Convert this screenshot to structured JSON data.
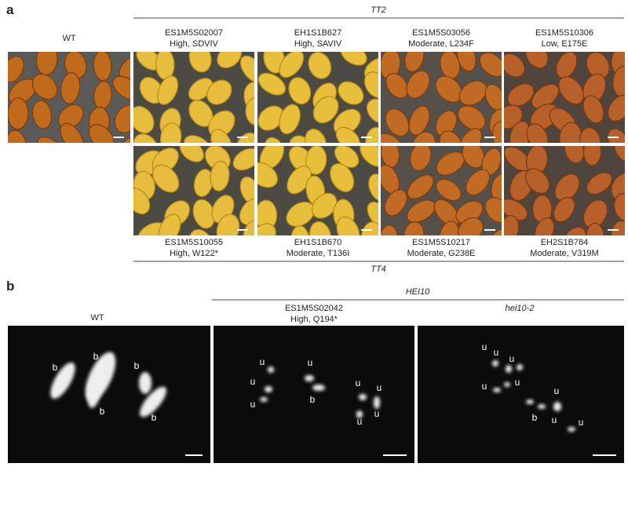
{
  "panel_a": {
    "label": "a",
    "group_top": "TT2",
    "group_bottom": "TT4",
    "wt": "WT",
    "top": [
      {
        "id": "ES1M5S02007",
        "effect": "High, SDVIV"
      },
      {
        "id": "EH1S1B627",
        "effect": "High, SAVIV"
      },
      {
        "id": "ES1M5S03056",
        "effect": "Moderate, L234F"
      },
      {
        "id": "ES1M5S10306",
        "effect": "Low, E175E"
      }
    ],
    "bottom": [
      {
        "id": "ES1M5S10055",
        "effect": "High, W122*"
      },
      {
        "id": "EH1S1B670",
        "effect": "Moderate, T136I"
      },
      {
        "id": "ES1M5S10217",
        "effect": "Moderate, G238E"
      },
      {
        "id": "EH2S1B784",
        "effect": "Moderate, V319M"
      }
    ]
  },
  "panel_b": {
    "label": "b",
    "group": "HEI10",
    "images": [
      {
        "title": "WT",
        "marks": [
          "b",
          "b",
          "b",
          "b",
          "b"
        ]
      },
      {
        "title": "ES1M5S02042",
        "subtitle": "High, Q194*",
        "marks": [
          "u",
          "u",
          "u",
          "u",
          "b",
          "u",
          "u",
          "u",
          "u"
        ]
      },
      {
        "title": "hei10-2",
        "marks": [
          "u",
          "u",
          "u",
          "u",
          "u",
          "b",
          "u",
          "u",
          "u"
        ]
      }
    ]
  }
}
